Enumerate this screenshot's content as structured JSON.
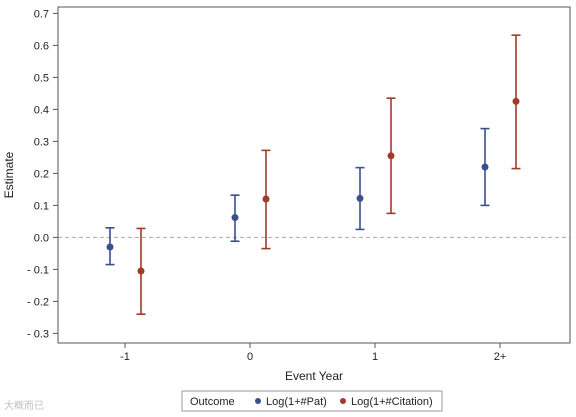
{
  "chart_data": {
    "type": "scatter",
    "title": "",
    "xlabel": "Event Year",
    "ylabel": "Estimate",
    "categories": [
      "-1",
      "0",
      "1",
      "2+"
    ],
    "ylim": [
      -0.33,
      0.72
    ],
    "yticks": [
      -0.3,
      -0.2,
      -0.1,
      0.0,
      0.1,
      0.2,
      0.3,
      0.4,
      0.5,
      0.6,
      0.7
    ],
    "ytick_labels": [
      "- 0.3",
      "- 0.2",
      "- 0.1",
      "0.0",
      "0.1",
      "0.2",
      "0.3",
      "0.4",
      "0.5",
      "0.6",
      "0.7"
    ],
    "reference_line": 0.0,
    "grid": false,
    "legend": {
      "title": "Outcome",
      "placement": "bottom-center"
    },
    "series": [
      {
        "name": "Log(1+#Pat)",
        "color": "#3b4f8e",
        "estimate": [
          -0.03,
          0.062,
          0.122,
          0.22
        ],
        "lower": [
          -0.085,
          -0.012,
          0.025,
          0.1
        ],
        "upper": [
          0.03,
          0.132,
          0.218,
          0.34
        ]
      },
      {
        "name": "Log(1+#Citation)",
        "color": "#a23a2a",
        "estimate": [
          -0.105,
          0.12,
          0.255,
          0.425
        ],
        "lower": [
          -0.24,
          -0.035,
          0.075,
          0.215
        ],
        "upper": [
          0.028,
          0.272,
          0.435,
          0.632
        ]
      }
    ]
  },
  "colors": {
    "axis": "#555555",
    "reference_line": "#aaaaaa",
    "watermark": "#c0c0c0"
  },
  "watermark": {
    "text": "大概而已"
  }
}
